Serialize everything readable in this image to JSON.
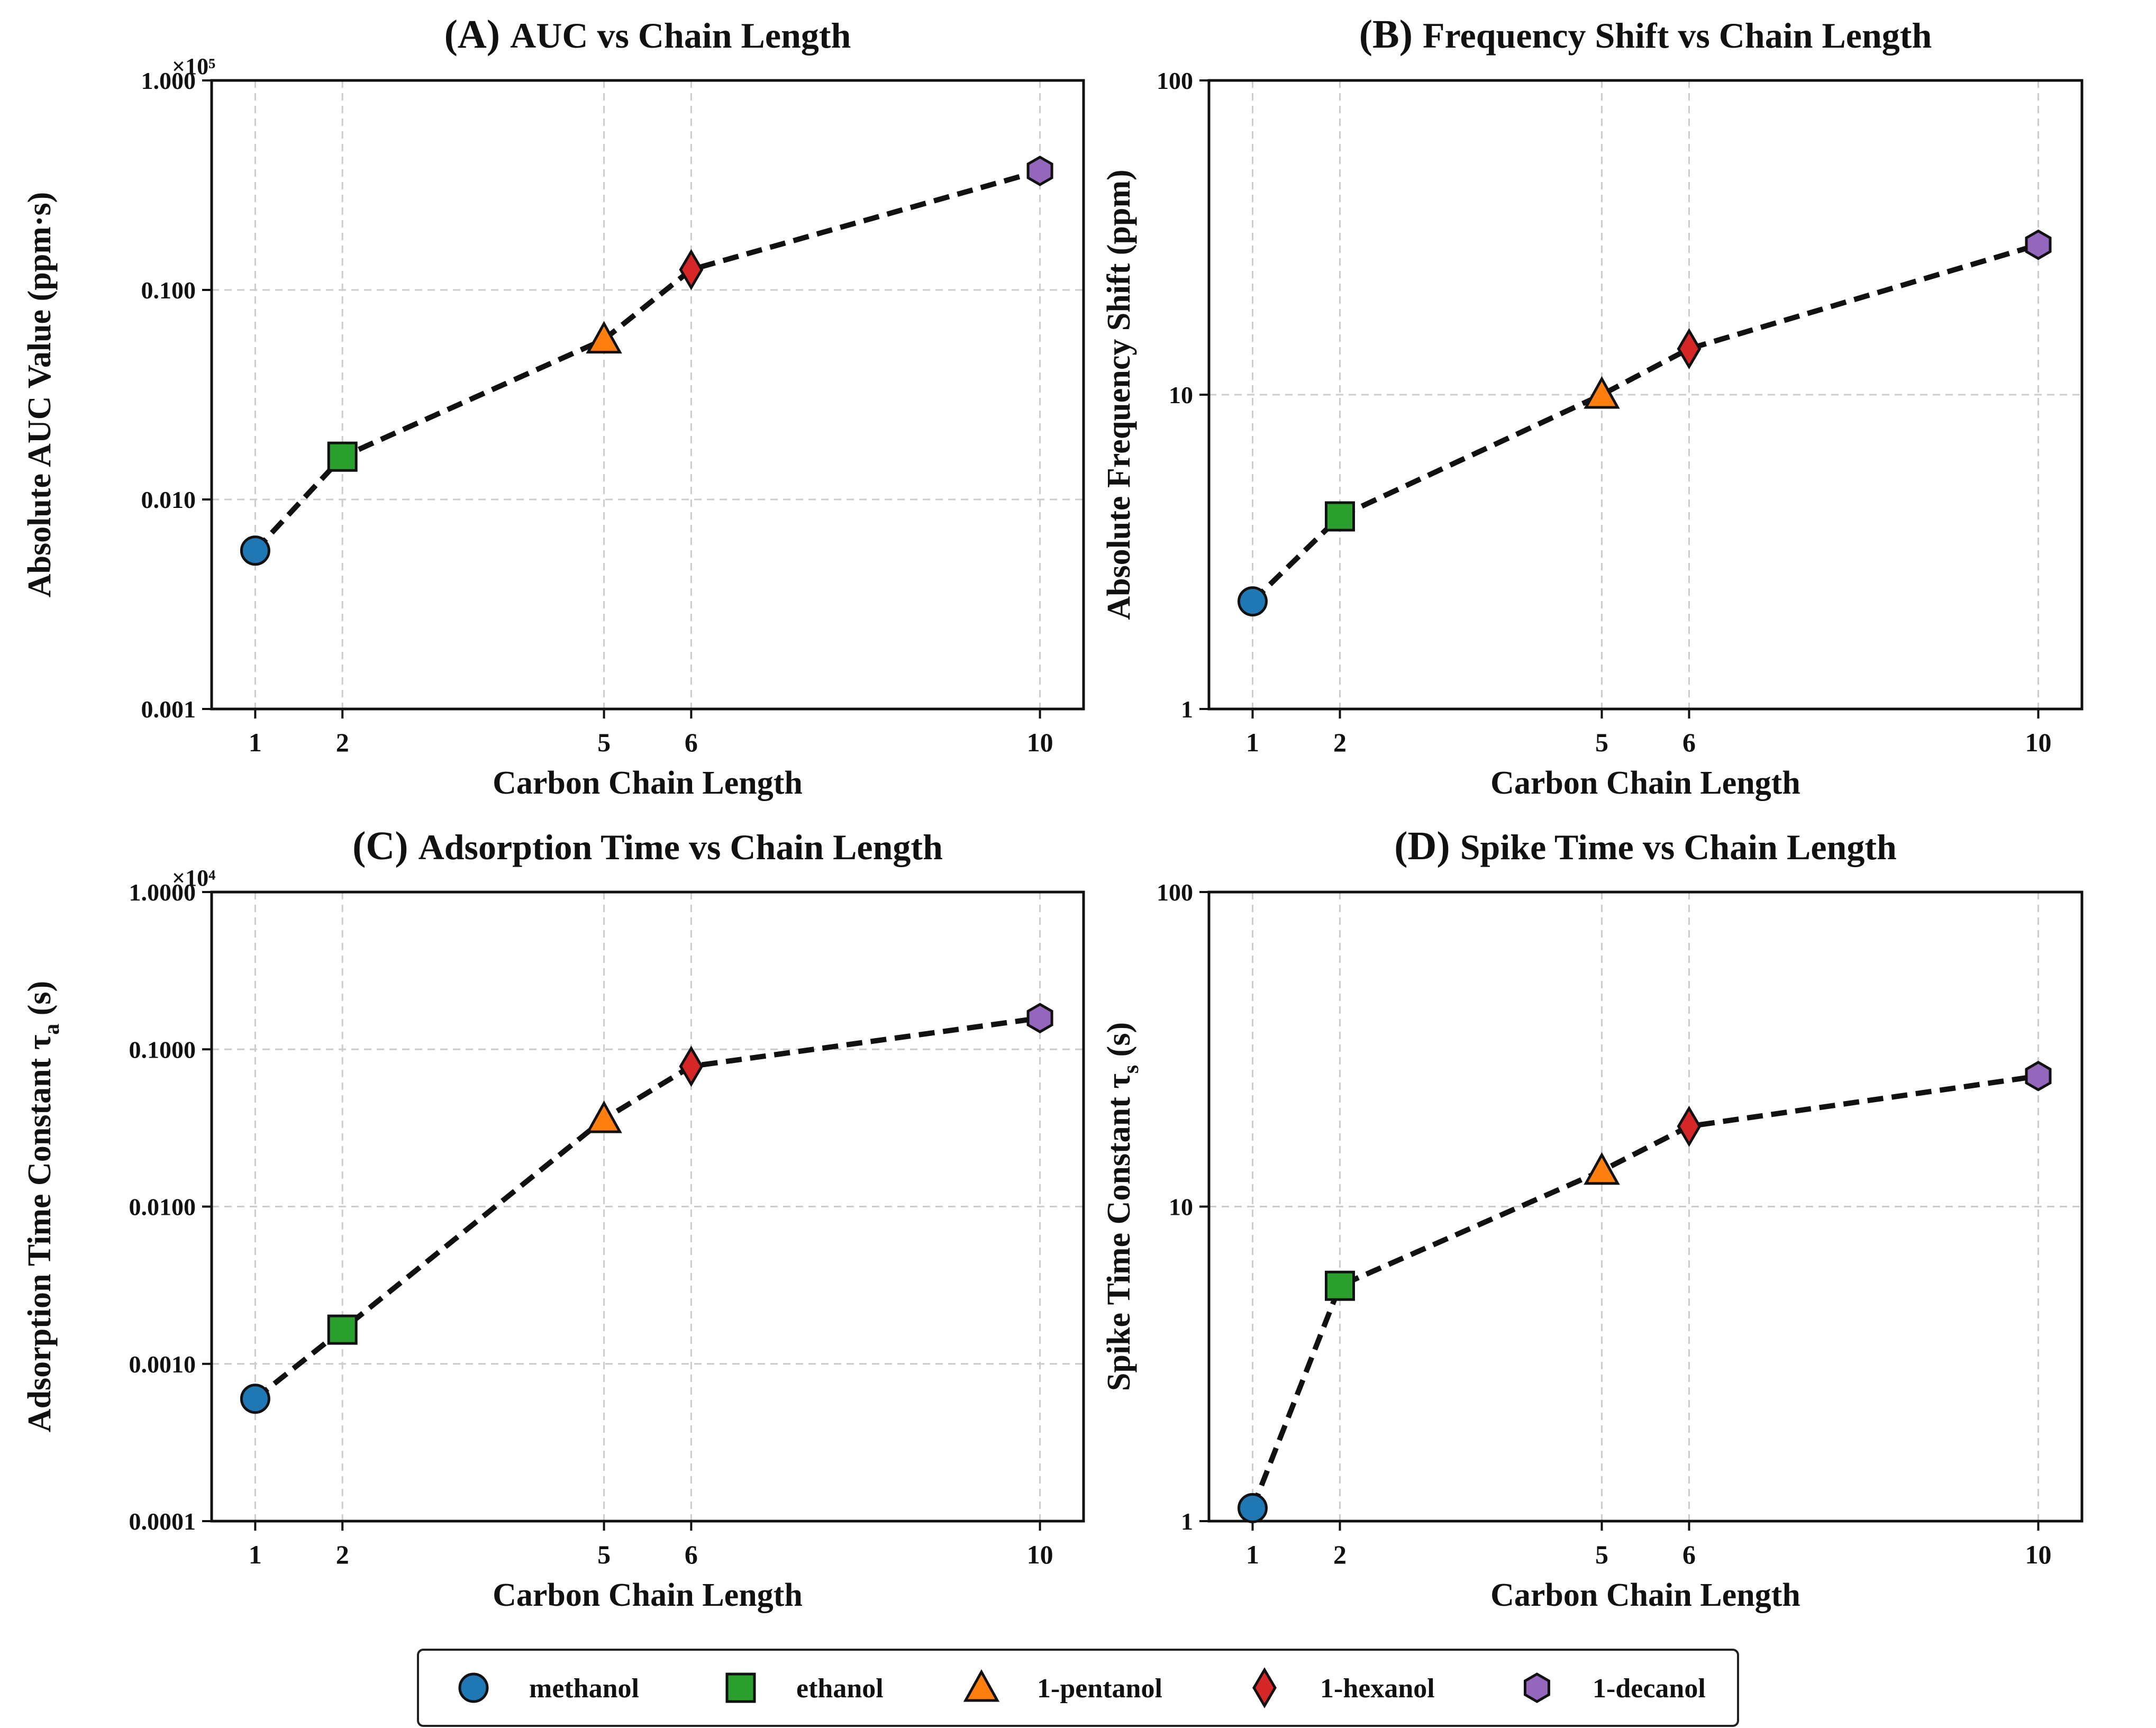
{
  "colors": {
    "methanol": "#1f77b4",
    "ethanol": "#2ca02c",
    "1-pentanol": "#ff7f0e",
    "1-hexanol": "#d62728",
    "1-decanol": "#9467bd",
    "line": "#111111",
    "grid": "#cccccc"
  },
  "legend": {
    "items": [
      {
        "label": "methanol",
        "marker": "circle",
        "color_key": "methanol"
      },
      {
        "label": "ethanol",
        "marker": "square",
        "color_key": "ethanol"
      },
      {
        "label": "1-pentanol",
        "marker": "triangle",
        "color_key": "1-pentanol"
      },
      {
        "label": "1-hexanol",
        "marker": "diamond",
        "color_key": "1-hexanol"
      },
      {
        "label": "1-decanol",
        "marker": "hexagon",
        "color_key": "1-decanol"
      }
    ]
  },
  "chart_data": [
    {
      "type": "line",
      "panel": "A",
      "title_prefix": "(A)",
      "title": "AUC vs Chain Length",
      "xlabel": "Carbon Chain Length",
      "ylabel": "Absolute AUC Value (ppm·s)",
      "yscale": "log",
      "offset_label": "×10⁵",
      "x": [
        1,
        2,
        5,
        6,
        10
      ],
      "xlim": [
        0.5,
        10.5
      ],
      "xticks": [
        "1",
        "2",
        "5",
        "6",
        "10"
      ],
      "ylim": [
        0.001,
        1.0
      ],
      "ytick_values": [
        0.001,
        0.01,
        0.1,
        1.0
      ],
      "yticks": [
        "0.001",
        "0.010",
        "0.100",
        "1.000"
      ],
      "series": [
        {
          "name": "AUC",
          "values": [
            0.0057,
            0.016,
            0.058,
            0.125,
            0.37
          ]
        }
      ],
      "grid": true
    },
    {
      "type": "line",
      "panel": "B",
      "title_prefix": "(B)",
      "title": "Frequency Shift vs Chain Length",
      "xlabel": "Carbon Chain Length",
      "ylabel": "Absolute Frequency Shift (ppm)",
      "yscale": "log",
      "offset_label": "",
      "x": [
        1,
        2,
        5,
        6,
        10
      ],
      "xlim": [
        0.5,
        10.5
      ],
      "xticks": [
        "1",
        "2",
        "5",
        "6",
        "10"
      ],
      "ylim": [
        1,
        100
      ],
      "ytick_values": [
        1,
        10,
        100
      ],
      "yticks": [
        "1",
        "10",
        "100"
      ],
      "series": [
        {
          "name": "Frequency Shift",
          "values": [
            2.2,
            4.1,
            10.0,
            14.0,
            30.0
          ]
        }
      ],
      "grid": true
    },
    {
      "type": "line",
      "panel": "C",
      "title_prefix": "(C)",
      "title": "Adsorption Time vs Chain Length",
      "xlabel": "Carbon Chain Length",
      "ylabel": "Adsorption Time Constant τ",
      "ylabel_sub": "a",
      "ylabel_suffix": " (s)",
      "yscale": "log",
      "offset_label": "×10⁴",
      "x": [
        1,
        2,
        5,
        6,
        10
      ],
      "xlim": [
        0.5,
        10.5
      ],
      "xticks": [
        "1",
        "2",
        "5",
        "6",
        "10"
      ],
      "ylim": [
        0.0001,
        1.0
      ],
      "ytick_values": [
        0.0001,
        0.001,
        0.01,
        0.1,
        1.0
      ],
      "yticks": [
        "0.0001",
        "0.0010",
        "0.0100",
        "0.1000",
        "1.0000"
      ],
      "series": [
        {
          "name": "Adsorption Time",
          "values": [
            0.0006,
            0.00165,
            0.036,
            0.078,
            0.158
          ]
        }
      ],
      "grid": true
    },
    {
      "type": "line",
      "panel": "D",
      "title_prefix": "(D)",
      "title": "Spike Time vs Chain Length",
      "xlabel": "Carbon Chain Length",
      "ylabel": "Spike Time Constant τ",
      "ylabel_sub": "s",
      "ylabel_suffix": " (s)",
      "yscale": "log",
      "offset_label": "",
      "x": [
        1,
        2,
        5,
        6,
        10
      ],
      "xlim": [
        0.5,
        10.5
      ],
      "xticks": [
        "1",
        "2",
        "5",
        "6",
        "10"
      ],
      "ylim": [
        1,
        100
      ],
      "ytick_values": [
        1,
        10,
        100
      ],
      "yticks": [
        "1",
        "10",
        "100"
      ],
      "series": [
        {
          "name": "Spike Time",
          "values": [
            1.1,
            5.6,
            13.0,
            18.0,
            26.0
          ]
        }
      ],
      "grid": true
    }
  ],
  "point_labels": [
    "methanol",
    "ethanol",
    "1-pentanol",
    "1-hexanol",
    "1-decanol"
  ]
}
